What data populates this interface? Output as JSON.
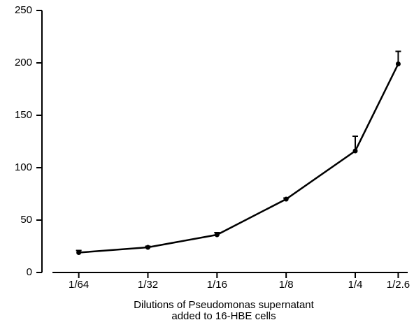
{
  "chart_data": {
    "type": "line",
    "xlabel": [
      "Dilutions of Pseudomonas supernatant",
      "added to 16-HBE cells"
    ],
    "x": [
      0.015625,
      0.03125,
      0.0625,
      0.125,
      0.25,
      0.3846
    ],
    "values": [
      19,
      24,
      36,
      70,
      116,
      199
    ],
    "errors": [
      2,
      1,
      2,
      1,
      14,
      12
    ],
    "color": "#000000",
    "xscale": "log",
    "xlim": [
      0.012,
      0.423
    ],
    "xticks": [
      {
        "value": 0.015625,
        "label": "1/64"
      },
      {
        "value": 0.03125,
        "label": "1/32"
      },
      {
        "value": 0.0625,
        "label": "1/16"
      },
      {
        "value": 0.125,
        "label": "1/8"
      },
      {
        "value": 0.25,
        "label": "1/4"
      },
      {
        "value": 0.3846,
        "label": "1/2.6"
      }
    ],
    "ylim": [
      0,
      250
    ],
    "yticks": [
      0,
      50,
      100,
      150,
      200,
      250
    ]
  }
}
